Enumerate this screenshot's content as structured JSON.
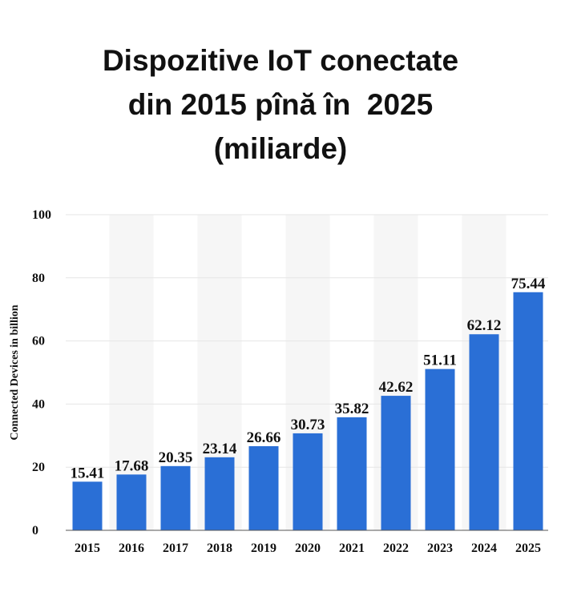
{
  "chart_data": {
    "type": "bar",
    "title_lines": [
      "Dispozitive IoT conectate",
      "din 2015 pînă în  2025",
      "(miliarde)"
    ],
    "categories": [
      "2015",
      "2016",
      "2017",
      "2018",
      "2019",
      "2020",
      "2021",
      "2022",
      "2023",
      "2024",
      "2025"
    ],
    "values": [
      15.41,
      17.68,
      20.35,
      23.14,
      26.66,
      30.73,
      35.82,
      42.62,
      51.11,
      62.12,
      75.44
    ],
    "value_labels": [
      "15.41",
      "17.68",
      "20.35",
      "23.14",
      "26.66",
      "30.73",
      "35.82",
      "42.62",
      "51.11",
      "62.12",
      "75.44"
    ],
    "xlabel": "",
    "ylabel": "Connected Devices in billion",
    "ylim": [
      0,
      100
    ],
    "yticks": [
      "0",
      "20",
      "40",
      "60",
      "80",
      "100"
    ],
    "grid": true,
    "bar_color": "#2a6fd6"
  }
}
